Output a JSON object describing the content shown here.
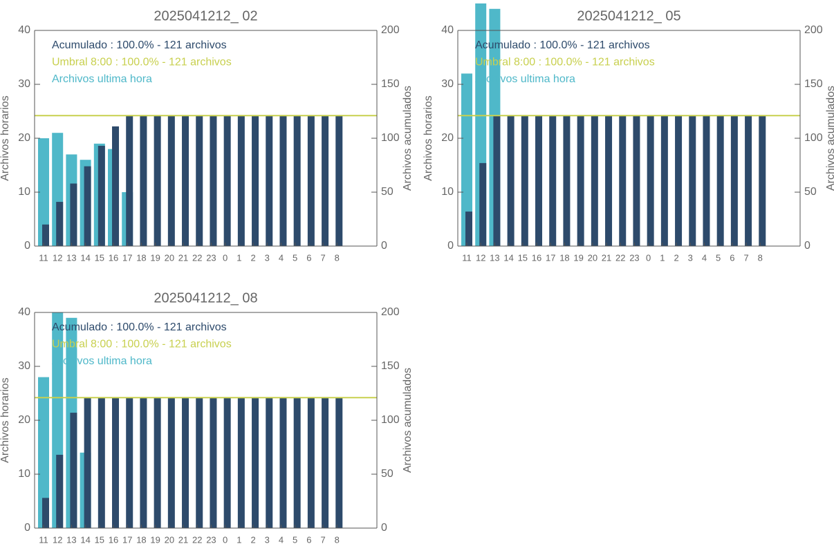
{
  "chart_data": [
    {
      "type": "bar",
      "title": "2025041212_ 02",
      "categories": [
        "11",
        "12",
        "13",
        "14",
        "15",
        "16",
        "17",
        "18",
        "19",
        "20",
        "21",
        "22",
        "23",
        "0",
        "1",
        "2",
        "3",
        "4",
        "5",
        "6",
        "7",
        "8"
      ],
      "series": [
        {
          "name": "Acumulado : 100.0% - 121 archivos",
          "color": "#2d4a6b",
          "axis": "y2",
          "values": [
            20,
            41,
            58,
            74,
            93,
            111,
            121,
            121,
            121,
            121,
            121,
            121,
            121,
            121,
            121,
            121,
            121,
            121,
            121,
            121,
            121,
            121
          ]
        },
        {
          "name": "Archivos ultima hora",
          "color": "#4fb8c9",
          "values": [
            20,
            21,
            17,
            16,
            19,
            18,
            10,
            0,
            0,
            0,
            0,
            0,
            0,
            0,
            0,
            0,
            0,
            0,
            0,
            0,
            0,
            0
          ]
        }
      ],
      "threshold": {
        "name": "Umbral 8:00 : 100.0% - 121 archivos",
        "color": "#c8d04f",
        "value": 121,
        "axis": "y2"
      },
      "ylabel": "Archivos horarios",
      "y2label": "Archivos acumulados",
      "ylim": [
        0,
        40
      ],
      "yticks": [
        0,
        10,
        20,
        30,
        40
      ],
      "y2lim": [
        0,
        200
      ],
      "y2ticks": [
        0,
        50,
        100,
        150,
        200
      ]
    },
    {
      "type": "bar",
      "title": "2025041212_ 05",
      "categories": [
        "11",
        "12",
        "13",
        "14",
        "15",
        "16",
        "17",
        "18",
        "19",
        "20",
        "21",
        "22",
        "23",
        "0",
        "1",
        "2",
        "3",
        "4",
        "5",
        "6",
        "7",
        "8"
      ],
      "series": [
        {
          "name": "Acumulado : 100.0% - 121 archivos",
          "color": "#2d4a6b",
          "axis": "y2",
          "values": [
            32,
            77,
            121,
            121,
            121,
            121,
            121,
            121,
            121,
            121,
            121,
            121,
            121,
            121,
            121,
            121,
            121,
            121,
            121,
            121,
            121,
            121
          ]
        },
        {
          "name": "Archivos ultima hora",
          "color": "#4fb8c9",
          "values": [
            32,
            45,
            44,
            0,
            0,
            0,
            0,
            0,
            0,
            0,
            0,
            0,
            0,
            0,
            0,
            0,
            0,
            0,
            0,
            0,
            0,
            0
          ]
        }
      ],
      "threshold": {
        "name": "Umbral 8:00 : 100.0% - 121 archivos",
        "color": "#c8d04f",
        "value": 121,
        "axis": "y2"
      },
      "ylabel": "Archivos horarios",
      "y2label": "Archivos acumulados",
      "ylim": [
        0,
        40
      ],
      "yticks": [
        0,
        10,
        20,
        30,
        40
      ],
      "y2lim": [
        0,
        200
      ],
      "y2ticks": [
        0,
        50,
        100,
        150,
        200
      ]
    },
    {
      "type": "bar",
      "title": "2025041212_ 08",
      "categories": [
        "11",
        "12",
        "13",
        "14",
        "15",
        "16",
        "17",
        "18",
        "19",
        "20",
        "21",
        "22",
        "23",
        "0",
        "1",
        "2",
        "3",
        "4",
        "5",
        "6",
        "7",
        "8"
      ],
      "series": [
        {
          "name": "Acumulado : 100.0% - 121 archivos",
          "color": "#2d4a6b",
          "axis": "y2",
          "values": [
            28,
            68,
            107,
            121,
            121,
            121,
            121,
            121,
            121,
            121,
            121,
            121,
            121,
            121,
            121,
            121,
            121,
            121,
            121,
            121,
            121,
            121
          ]
        },
        {
          "name": "Archivos ultima hora",
          "color": "#4fb8c9",
          "values": [
            28,
            40,
            39,
            14,
            0,
            0,
            0,
            0,
            0,
            0,
            0,
            0,
            0,
            0,
            0,
            0,
            0,
            0,
            0,
            0,
            0,
            0
          ]
        }
      ],
      "threshold": {
        "name": "Umbral 8:00 : 100.0% - 121 archivos",
        "color": "#c8d04f",
        "value": 121,
        "axis": "y2"
      },
      "ylabel": "Archivos horarios",
      "y2label": "Archivos acumulados",
      "ylim": [
        0,
        40
      ],
      "yticks": [
        0,
        10,
        20,
        30,
        40
      ],
      "y2lim": [
        0,
        200
      ],
      "y2ticks": [
        0,
        50,
        100,
        150,
        200
      ]
    }
  ]
}
